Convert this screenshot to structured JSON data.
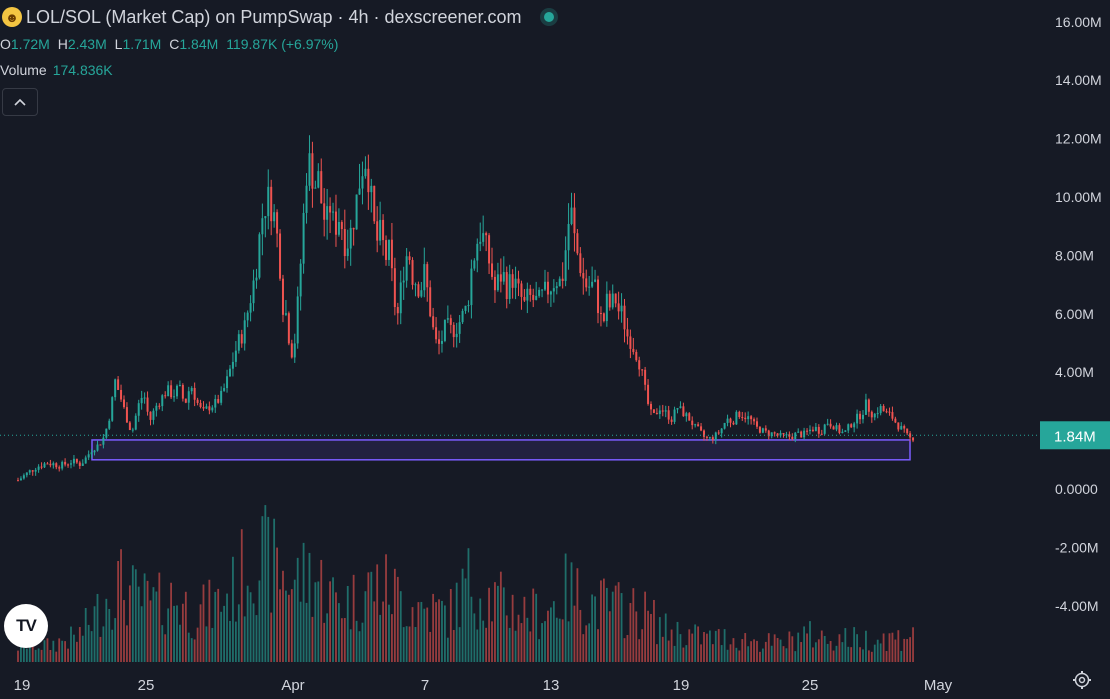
{
  "header": {
    "title": "LOL/SOL (Market Cap) on PumpSwap · 4h · dexscreener.com",
    "ohlc": [
      {
        "key": "O",
        "value": "1.72M"
      },
      {
        "key": "H",
        "value": "2.43M"
      },
      {
        "key": "L",
        "value": "1.71M"
      },
      {
        "key": "C",
        "value": "1.84M"
      }
    ],
    "change": "119.87K (+6.97%)",
    "volume_label": "Volume",
    "volume_value": "174.836K"
  },
  "colors": {
    "background": "#161a25",
    "up": "#26a69a",
    "down": "#ef5350",
    "zone": "#7b5cff",
    "text": "#d1d4dc"
  },
  "icons": {
    "status": "live-dot-icon",
    "collapse": "chevron-up-icon",
    "logo": "tradingview-logo",
    "settings": "gear-icon"
  },
  "chart_data": {
    "type": "candlestick",
    "interval": "4h",
    "y_axis": {
      "ticks": [
        "16.00M",
        "14.00M",
        "12.00M",
        "10.00M",
        "8.00M",
        "6.00M",
        "4.00M",
        "0.0000",
        "-2.00M",
        "-4.00M"
      ],
      "values": [
        16,
        14,
        12,
        10,
        8,
        6,
        4,
        0,
        -2,
        -4
      ],
      "unit": "M"
    },
    "x_axis": {
      "ticks": [
        "19",
        "25",
        "Apr",
        "7",
        "13",
        "19",
        "25",
        "May"
      ]
    },
    "current_price": {
      "label": "1.84M",
      "value": 1.84
    },
    "zone": {
      "top": 1.68,
      "bottom": 1.0
    },
    "price_path": [
      [
        0,
        0.3
      ],
      [
        8,
        0.5
      ],
      [
        18,
        0.75
      ],
      [
        30,
        0.9
      ],
      [
        44,
        0.8
      ],
      [
        55,
        0.95
      ],
      [
        64,
        0.85
      ],
      [
        70,
        1.1
      ],
      [
        76,
        1.4
      ],
      [
        82,
        1.5
      ],
      [
        88,
        1.8
      ],
      [
        94,
        2.6
      ],
      [
        99,
        3.7
      ],
      [
        104,
        3.2
      ],
      [
        110,
        2.5
      ],
      [
        116,
        1.9
      ],
      [
        122,
        2.8
      ],
      [
        128,
        3.3
      ],
      [
        134,
        2.3
      ],
      [
        140,
        2.8
      ],
      [
        146,
        3.1
      ],
      [
        152,
        3.4
      ],
      [
        158,
        3.2
      ],
      [
        164,
        3.5
      ],
      [
        170,
        2.9
      ],
      [
        176,
        3.6
      ],
      [
        182,
        3.0
      ],
      [
        188,
        2.6
      ],
      [
        194,
        2.8
      ],
      [
        200,
        2.9
      ],
      [
        206,
        3.1
      ],
      [
        212,
        3.6
      ],
      [
        218,
        4.3
      ],
      [
        224,
        5.0
      ],
      [
        230,
        5.4
      ],
      [
        236,
        6.4
      ],
      [
        242,
        7.4
      ],
      [
        246,
        8.6
      ],
      [
        250,
        9.6
      ],
      [
        256,
        10.0
      ],
      [
        262,
        9.2
      ],
      [
        266,
        8.1
      ],
      [
        270,
        6.3
      ],
      [
        274,
        5.9
      ],
      [
        278,
        4.6
      ],
      [
        282,
        5.1
      ],
      [
        286,
        6.7
      ],
      [
        290,
        8.8
      ],
      [
        294,
        10.9
      ],
      [
        298,
        11.2
      ],
      [
        302,
        10.4
      ],
      [
        306,
        10.6
      ],
      [
        310,
        9.6
      ],
      [
        314,
        9.0
      ],
      [
        318,
        9.7
      ],
      [
        322,
        8.9
      ],
      [
        328,
        9.4
      ],
      [
        334,
        8.3
      ],
      [
        340,
        8.9
      ],
      [
        346,
        10.1
      ],
      [
        350,
        11.0
      ],
      [
        354,
        11.3
      ],
      [
        358,
        10.6
      ],
      [
        362,
        9.1
      ],
      [
        366,
        8.5
      ],
      [
        370,
        8.8
      ],
      [
        374,
        7.9
      ],
      [
        378,
        8.1
      ],
      [
        382,
        7.0
      ],
      [
        386,
        5.7
      ],
      [
        390,
        6.8
      ],
      [
        394,
        7.8
      ],
      [
        398,
        8.2
      ],
      [
        402,
        7.3
      ],
      [
        406,
        7.1
      ],
      [
        410,
        6.8
      ],
      [
        414,
        7.4
      ],
      [
        418,
        6.6
      ],
      [
        422,
        5.6
      ],
      [
        426,
        5.0
      ],
      [
        430,
        4.9
      ],
      [
        436,
        5.6
      ],
      [
        442,
        5.4
      ],
      [
        448,
        5.6
      ],
      [
        454,
        6.0
      ],
      [
        458,
        6.3
      ],
      [
        462,
        7.5
      ],
      [
        466,
        8.2
      ],
      [
        470,
        8.8
      ],
      [
        474,
        8.6
      ],
      [
        478,
        8.1
      ],
      [
        482,
        7.5
      ],
      [
        486,
        6.8
      ],
      [
        490,
        7.2
      ],
      [
        494,
        7.4
      ],
      [
        498,
        6.9
      ],
      [
        504,
        7.2
      ],
      [
        508,
        6.9
      ],
      [
        512,
        6.6
      ],
      [
        516,
        6.3
      ],
      [
        520,
        6.6
      ],
      [
        524,
        6.5
      ],
      [
        530,
        6.4
      ],
      [
        536,
        6.7
      ],
      [
        542,
        6.9
      ],
      [
        548,
        7.2
      ],
      [
        552,
        7.1
      ],
      [
        556,
        7.4
      ],
      [
        560,
        9.0
      ],
      [
        564,
        9.4
      ],
      [
        568,
        8.3
      ],
      [
        572,
        7.8
      ],
      [
        576,
        7.2
      ],
      [
        580,
        6.9
      ],
      [
        584,
        7.0
      ],
      [
        588,
        6.9
      ],
      [
        592,
        6.1
      ],
      [
        596,
        5.6
      ],
      [
        600,
        6.4
      ],
      [
        604,
        6.2
      ],
      [
        608,
        6.6
      ],
      [
        612,
        6.1
      ],
      [
        616,
        6.0
      ],
      [
        620,
        5.3
      ],
      [
        624,
        5.1
      ],
      [
        628,
        4.8
      ],
      [
        632,
        4.5
      ],
      [
        636,
        3.9
      ],
      [
        640,
        3.2
      ],
      [
        644,
        2.6
      ],
      [
        648,
        2.5
      ],
      [
        654,
        2.8
      ],
      [
        660,
        2.6
      ],
      [
        666,
        2.4
      ],
      [
        672,
        2.8
      ],
      [
        678,
        2.6
      ],
      [
        684,
        2.4
      ],
      [
        690,
        2.1
      ],
      [
        694,
        2.0
      ],
      [
        698,
        1.8
      ],
      [
        704,
        1.7
      ],
      [
        710,
        1.8
      ],
      [
        716,
        2.0
      ],
      [
        722,
        2.4
      ],
      [
        728,
        2.3
      ],
      [
        734,
        2.6
      ],
      [
        740,
        2.5
      ],
      [
        746,
        2.4
      ],
      [
        752,
        2.1
      ],
      [
        758,
        2.0
      ],
      [
        764,
        1.9
      ],
      [
        770,
        1.9
      ],
      [
        776,
        1.8
      ],
      [
        782,
        1.8
      ],
      [
        788,
        1.8
      ],
      [
        794,
        1.9
      ],
      [
        800,
        1.85
      ],
      [
        806,
        2.0
      ],
      [
        812,
        2.1
      ],
      [
        818,
        1.95
      ],
      [
        824,
        2.3
      ],
      [
        830,
        2.2
      ],
      [
        836,
        2.0
      ],
      [
        842,
        1.9
      ],
      [
        848,
        2.2
      ],
      [
        854,
        2.4
      ],
      [
        860,
        2.6
      ],
      [
        864,
        2.9
      ],
      [
        868,
        2.7
      ],
      [
        872,
        2.5
      ],
      [
        878,
        2.8
      ],
      [
        884,
        2.6
      ],
      [
        890,
        2.5
      ],
      [
        896,
        2.2
      ],
      [
        902,
        2.0
      ],
      [
        906,
        1.8
      ],
      [
        910,
        1.7
      ],
      [
        914,
        1.84
      ]
    ],
    "volume_profile": [
      [
        0,
        0.2
      ],
      [
        12,
        0.25
      ],
      [
        30,
        0.2
      ],
      [
        48,
        0.28
      ],
      [
        60,
        0.3
      ],
      [
        80,
        0.6
      ],
      [
        100,
        1.0
      ],
      [
        120,
        0.8
      ],
      [
        140,
        0.7
      ],
      [
        160,
        0.8
      ],
      [
        180,
        0.6
      ],
      [
        200,
        0.7
      ],
      [
        220,
        0.9
      ],
      [
        240,
        1.35
      ],
      [
        260,
        1.2
      ],
      [
        280,
        1.0
      ],
      [
        300,
        1.1
      ],
      [
        320,
        0.8
      ],
      [
        340,
        0.75
      ],
      [
        360,
        0.95
      ],
      [
        380,
        0.9
      ],
      [
        400,
        0.7
      ],
      [
        420,
        0.65
      ],
      [
        440,
        0.6
      ],
      [
        460,
        1.0
      ],
      [
        480,
        0.8
      ],
      [
        500,
        0.7
      ],
      [
        520,
        0.6
      ],
      [
        540,
        0.65
      ],
      [
        560,
        0.9
      ],
      [
        580,
        0.75
      ],
      [
        600,
        0.7
      ],
      [
        620,
        0.65
      ],
      [
        640,
        0.6
      ],
      [
        660,
        0.4
      ],
      [
        680,
        0.35
      ],
      [
        700,
        0.3
      ],
      [
        720,
        0.3
      ],
      [
        740,
        0.28
      ],
      [
        760,
        0.25
      ],
      [
        780,
        0.22
      ],
      [
        800,
        0.35
      ],
      [
        820,
        0.3
      ],
      [
        840,
        0.3
      ],
      [
        860,
        0.28
      ],
      [
        880,
        0.3
      ],
      [
        900,
        0.3
      ],
      [
        914,
        0.45
      ]
    ]
  }
}
